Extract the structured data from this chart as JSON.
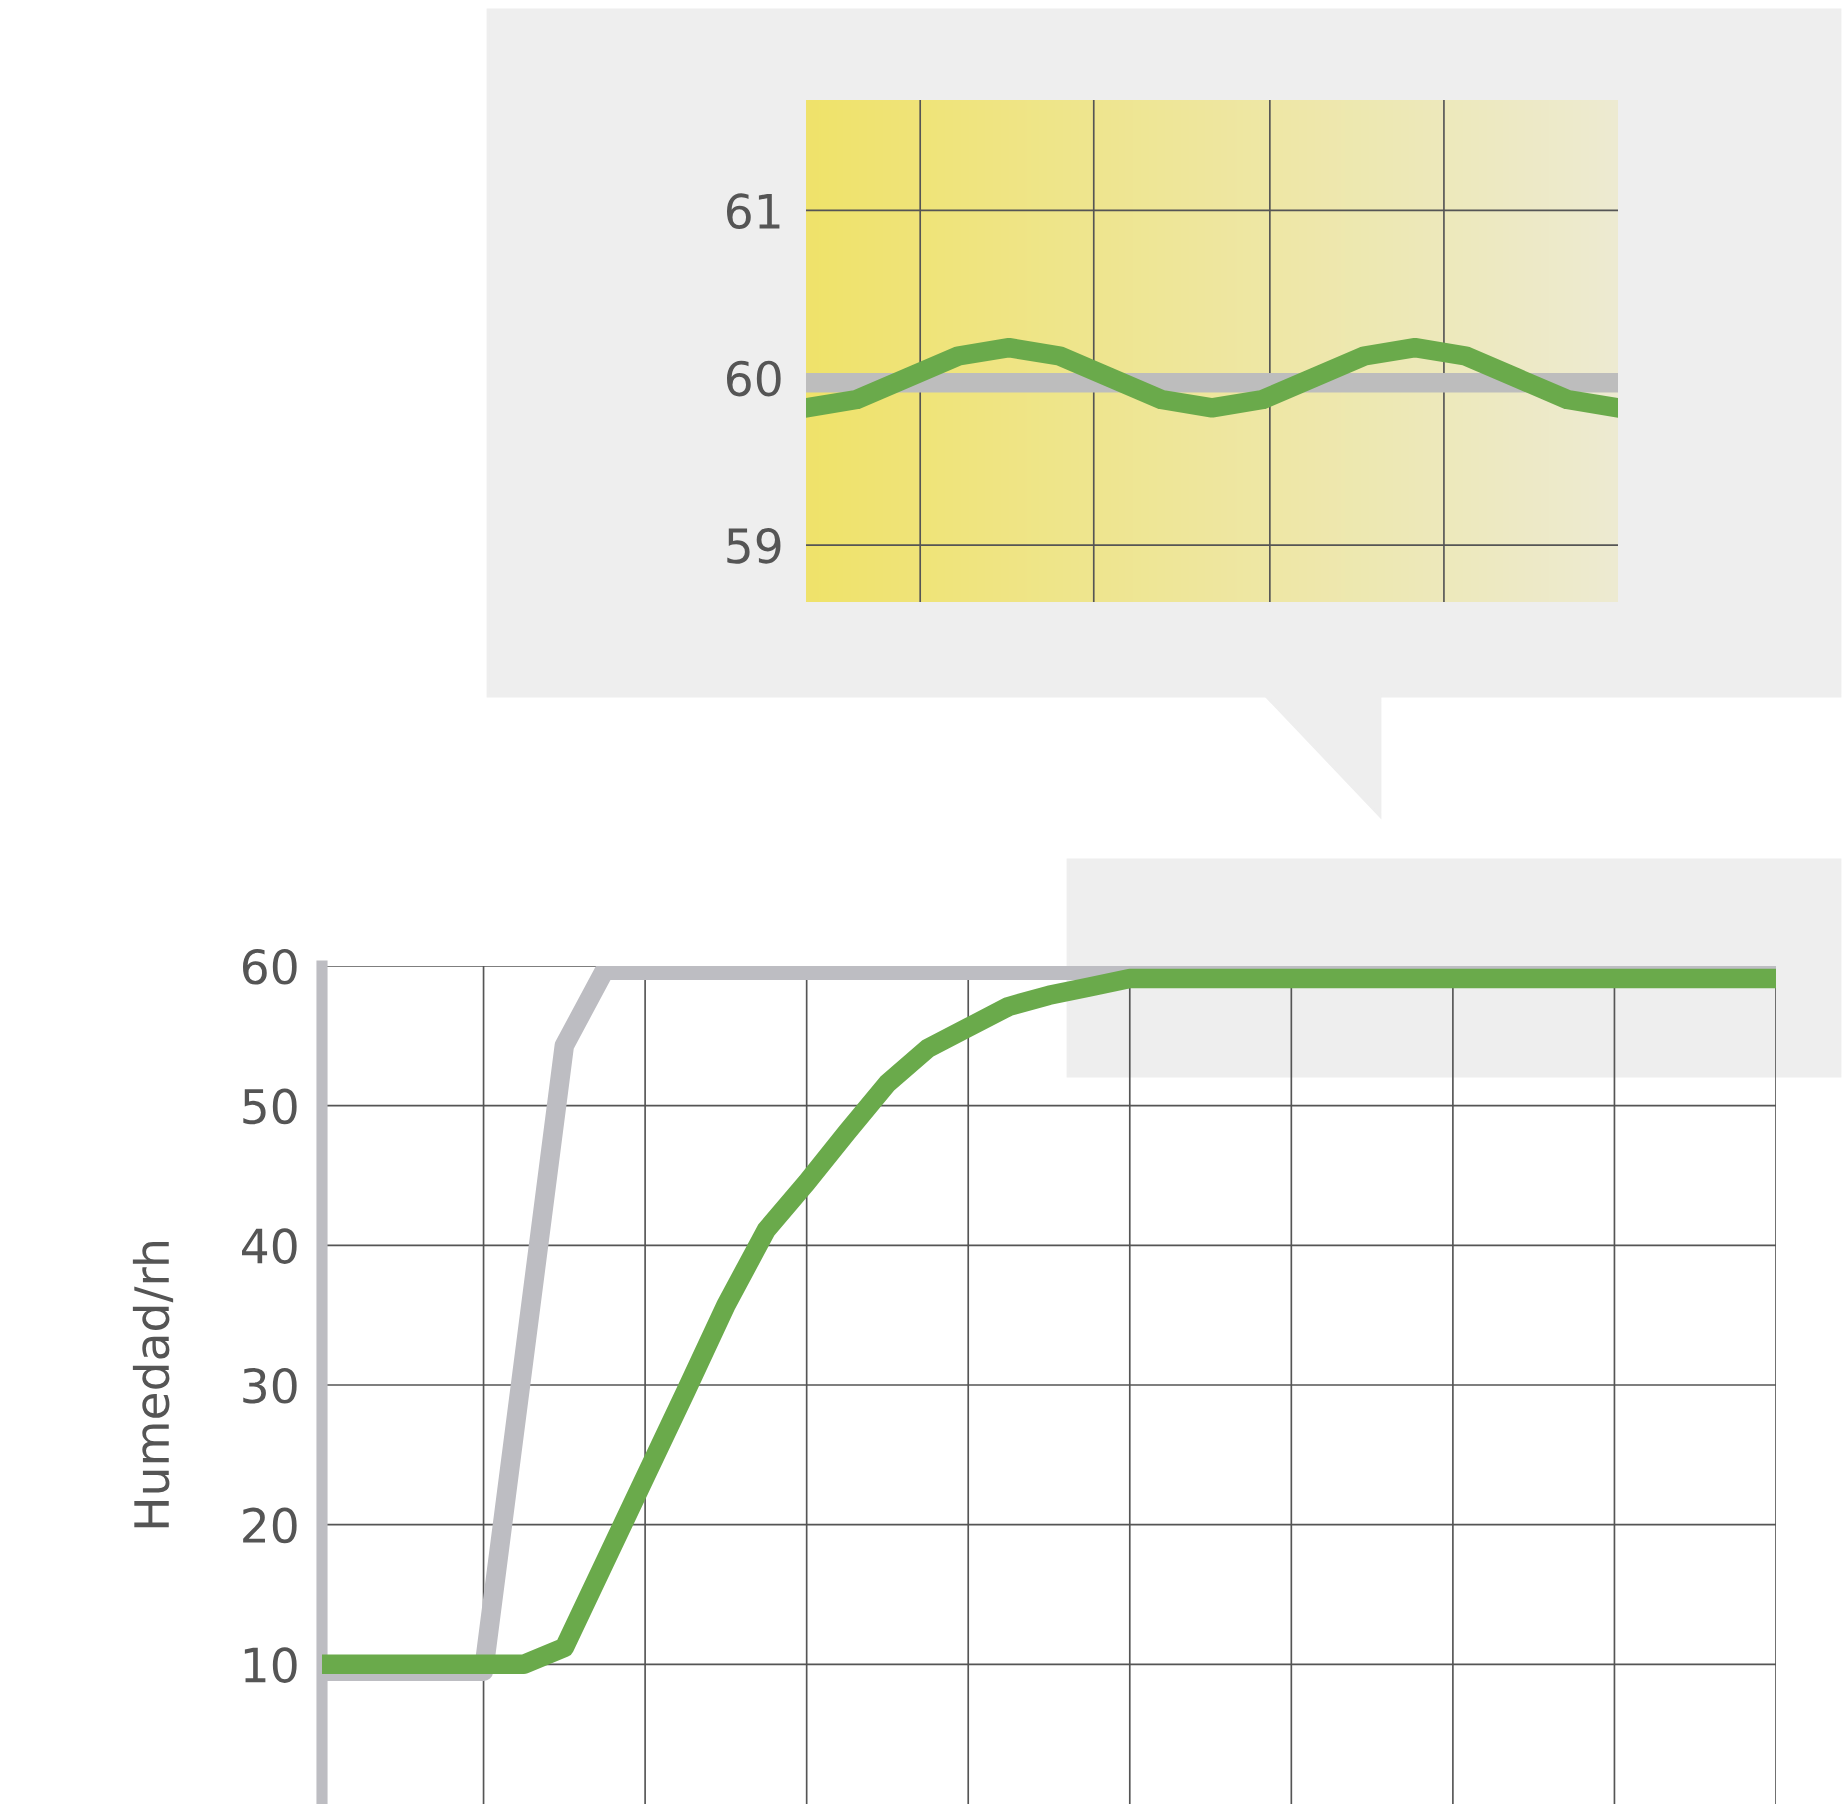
{
  "chart_data": [
    {
      "type": "line",
      "categories": [
        null,
        null,
        null,
        null,
        null,
        null,
        null,
        null,
        null,
        null,
        null,
        null,
        null,
        null,
        null,
        null,
        null
      ],
      "ylim": [
        58.66,
        61.66
      ],
      "yticks": [
        59,
        60,
        61
      ],
      "grid": true,
      "series": [
        {
          "color": "#bdbdbd",
          "values": [
            59.97,
            59.97,
            59.97,
            59.97,
            59.97,
            59.97,
            59.97,
            59.97,
            59.97,
            59.97,
            59.97,
            59.97,
            59.97,
            59.97,
            59.97,
            59.97,
            59.97
          ]
        },
        {
          "color": "#6aaa4b",
          "values": [
            59.82,
            59.87,
            60.0,
            60.13,
            60.18,
            60.13,
            60.0,
            59.87,
            59.82,
            59.87,
            60.0,
            60.13,
            60.18,
            60.13,
            60.0,
            59.87,
            59.82
          ]
        }
      ]
    },
    {
      "type": "line",
      "ylabel": "Humedad/rh",
      "categories": [
        null,
        null,
        null,
        null,
        null,
        null,
        null,
        null,
        null,
        null,
        null,
        null,
        null,
        null,
        null,
        null,
        null,
        null,
        null,
        null,
        null,
        null,
        null,
        null,
        null,
        null,
        null,
        null,
        null,
        null,
        null,
        null,
        null,
        null,
        null,
        null,
        null
      ],
      "ylim": [
        0,
        60
      ],
      "yticks": [
        10,
        20,
        30,
        40,
        50,
        60
      ],
      "grid": true,
      "series": [
        {
          "color": "#bdbdc2",
          "values": [
            9.5,
            9.5,
            9.5,
            9.5,
            9.5,
            31.9,
            54.3,
            59.7,
            59.7,
            59.7,
            59.7,
            59.7,
            59.7,
            59.7,
            59.7,
            59.7,
            59.7,
            59.7,
            59.7,
            59.7,
            59.7,
            59.7,
            59.7,
            59.7,
            59.7,
            59.7,
            59.7,
            59.7,
            59.7,
            59.7,
            59.7,
            59.7,
            59.7,
            59.7,
            59.7,
            59.7,
            59.7
          ]
        },
        {
          "color": "#6aaa4b",
          "values": [
            10,
            10,
            10,
            10,
            10,
            10,
            11.2,
            17.3,
            23.4,
            29.5,
            35.7,
            41.1,
            44.5,
            48.1,
            51.6,
            54.1,
            55.6,
            57.1,
            57.9,
            58.5,
            59.1,
            59.1,
            59.1,
            59.1,
            59.1,
            59.1,
            59.1,
            59.1,
            59.1,
            59.1,
            59.1,
            59.1,
            59.1,
            59.1,
            59.1,
            59.1,
            59.1
          ]
        }
      ]
    }
  ]
}
